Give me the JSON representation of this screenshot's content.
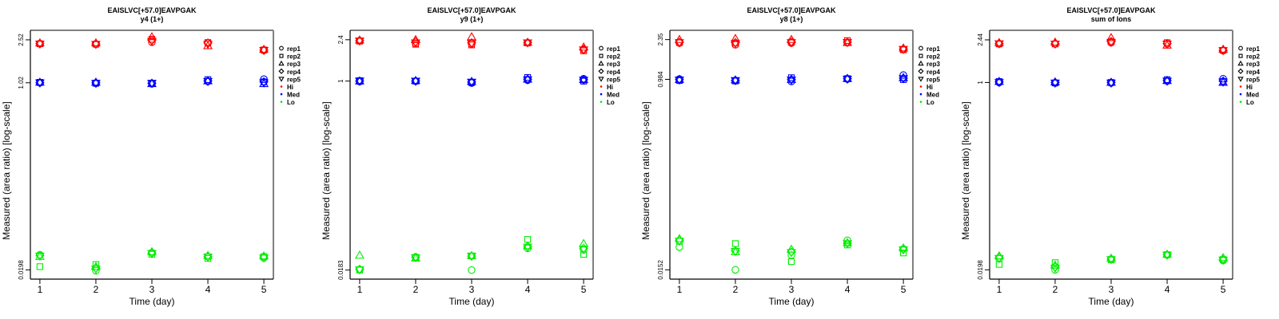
{
  "chart_data": [
    {
      "type": "scatter",
      "title": "EAISLVC[+57.0]EAVPGAK",
      "subtitle": "y4 (1+)",
      "xlabel": "Time (day)",
      "ylabel": "Measured (area ratio) [log-scale]",
      "yscale": "log",
      "x": [
        1,
        2,
        3,
        4,
        5
      ],
      "xticks": [
        "1",
        "2",
        "3",
        "4",
        "5"
      ],
      "yticks": [
        0.0198,
        1.02,
        2.52
      ],
      "ytick_labels": [
        "0.0198",
        "1.02",
        "2.52"
      ],
      "ylim": [
        0.0163,
        3.08
      ],
      "xlim": [
        0.83,
        5.17
      ],
      "legend": [
        "rep1",
        "rep2",
        "rep3",
        "rep4",
        "rep5",
        "Hi",
        "Med",
        "Lo"
      ],
      "legend_position": "right",
      "series": [
        {
          "name": "Hi",
          "rep1": [
            2.32,
            2.3,
            2.4,
            2.36,
            2.02
          ],
          "rep2": [
            2.32,
            2.3,
            2.55,
            2.38,
            2.04
          ],
          "rep3": [
            2.36,
            2.36,
            2.68,
            2.22,
            2.06
          ],
          "rep4": [
            2.33,
            2.31,
            2.5,
            2.36,
            2.03
          ],
          "rep5": [
            2.31,
            2.29,
            2.45,
            2.3,
            2.02
          ]
        },
        {
          "name": "Med",
          "rep1": [
            1.02,
            1.01,
            1.0,
            1.05,
            1.1
          ],
          "rep2": [
            1.03,
            1.01,
            1.01,
            1.09,
            1.04
          ],
          "rep3": [
            1.03,
            1.03,
            1.0,
            1.06,
            1.0
          ],
          "rep4": [
            1.02,
            1.02,
            1.01,
            1.06,
            1.04
          ],
          "rep5": [
            1.02,
            1.01,
            1.01,
            1.05,
            1.02
          ]
        },
        {
          "name": "Lo",
          "rep1": [
            0.0272,
            0.0195,
            0.0285,
            0.0262,
            0.0255
          ],
          "rep2": [
            0.0212,
            0.0222,
            0.0275,
            0.0252,
            0.0262
          ],
          "rep3": [
            0.0262,
            0.0212,
            0.029,
            0.0268,
            0.0265
          ],
          "rep4": [
            0.0268,
            0.0205,
            0.0282,
            0.0262,
            0.0258
          ],
          "rep5": [
            0.0265,
            0.0202,
            0.028,
            0.026,
            0.0255
          ]
        }
      ]
    },
    {
      "type": "scatter",
      "title": "EAISLVC[+57.0]EAVPGAK",
      "subtitle": "y9 (1+)",
      "xlabel": "Time (day)",
      "ylabel": "Measured (area ratio) [log-scale]",
      "yscale": "log",
      "x": [
        1,
        2,
        3,
        4,
        5
      ],
      "xticks": [
        "1",
        "2",
        "3",
        "4",
        "5"
      ],
      "yticks": [
        0.0183,
        1,
        2.4
      ],
      "ytick_labels": [
        "0.0183",
        "1",
        "2.4"
      ],
      "ylim": [
        0.0151,
        2.93
      ],
      "xlim": [
        0.83,
        5.17
      ],
      "legend": [
        "rep1",
        "rep2",
        "rep3",
        "rep4",
        "rep5",
        "Hi",
        "Med",
        "Lo"
      ],
      "legend_position": "right",
      "series": [
        {
          "name": "Hi",
          "rep1": [
            2.35,
            2.22,
            2.2,
            2.25,
            1.95
          ],
          "rep2": [
            2.33,
            2.18,
            2.15,
            2.24,
            1.9
          ],
          "rep3": [
            2.38,
            2.4,
            2.55,
            2.27,
            2.05
          ],
          "rep4": [
            2.36,
            2.3,
            2.25,
            2.26,
            1.96
          ],
          "rep5": [
            2.34,
            2.25,
            2.22,
            2.25,
            1.94
          ]
        },
        {
          "name": "Med",
          "rep1": [
            0.99,
            1.0,
            0.96,
            1.02,
            1.05
          ],
          "rep2": [
            1.01,
            1.0,
            0.97,
            1.08,
            1.0
          ],
          "rep3": [
            1.0,
            1.01,
            0.99,
            1.04,
            1.03
          ],
          "rep4": [
            1.0,
            1.0,
            0.98,
            1.04,
            1.03
          ],
          "rep5": [
            1.0,
            1.0,
            0.98,
            1.03,
            1.02
          ]
        },
        {
          "name": "Lo",
          "rep1": [
            0.0185,
            0.0242,
            0.0183,
            0.029,
            0.028
          ],
          "rep2": [
            0.0183,
            0.0238,
            0.0247,
            0.035,
            0.0255
          ],
          "rep3": [
            0.025,
            0.0236,
            0.0248,
            0.0305,
            0.032
          ],
          "rep4": [
            0.0186,
            0.024,
            0.0246,
            0.03,
            0.029
          ],
          "rep5": [
            0.0184,
            0.0238,
            0.0246,
            0.0298,
            0.0285
          ]
        }
      ]
    },
    {
      "type": "scatter",
      "title": "EAISLVC[+57.0]EAVPGAK",
      "subtitle": "y8 (1+)",
      "xlabel": "Time (day)",
      "ylabel": "Measured (area ratio) [log-scale]",
      "yscale": "log",
      "x": [
        1,
        2,
        3,
        4,
        5
      ],
      "xticks": [
        "1",
        "2",
        "3",
        "4",
        "5"
      ],
      "yticks": [
        0.0152,
        0.984,
        2.35
      ],
      "ytick_labels": [
        "0.0152",
        "0.984",
        "2.35"
      ],
      "ylim": [
        0.0124,
        2.88
      ],
      "xlim": [
        0.83,
        5.17
      ],
      "legend": [
        "rep1",
        "rep2",
        "rep3",
        "rep4",
        "rep5",
        "Hi",
        "Med",
        "Lo"
      ],
      "legend_position": "right",
      "series": [
        {
          "name": "Hi",
          "rep1": [
            2.18,
            2.1,
            2.18,
            2.2,
            1.9
          ],
          "rep2": [
            2.2,
            2.18,
            2.22,
            2.3,
            1.88
          ],
          "rep3": [
            2.35,
            2.4,
            2.35,
            2.2,
            1.95
          ],
          "rep4": [
            2.22,
            2.2,
            2.23,
            2.22,
            1.91
          ],
          "rep5": [
            2.2,
            2.16,
            2.2,
            2.21,
            1.9
          ]
        },
        {
          "name": "Med",
          "rep1": [
            0.99,
            0.96,
            0.94,
            0.99,
            1.08
          ],
          "rep2": [
            0.96,
            0.95,
            1.02,
            1.0,
            0.98
          ],
          "rep3": [
            0.98,
            0.97,
            0.98,
            1.0,
            1.02
          ],
          "rep4": [
            0.98,
            0.96,
            0.98,
            1.0,
            1.01
          ],
          "rep5": [
            0.97,
            0.96,
            0.97,
            0.99,
            1.0
          ]
        },
        {
          "name": "Lo",
          "rep1": [
            0.025,
            0.0152,
            0.021,
            0.029,
            0.024
          ],
          "rep2": [
            0.0285,
            0.027,
            0.0182,
            0.0262,
            0.022
          ],
          "rep3": [
            0.03,
            0.0225,
            0.0238,
            0.0275,
            0.0245
          ],
          "rep4": [
            0.029,
            0.023,
            0.0225,
            0.0272,
            0.0238
          ],
          "rep5": [
            0.0285,
            0.0228,
            0.0222,
            0.027,
            0.0236
          ]
        }
      ]
    },
    {
      "type": "scatter",
      "title": "EAISLVC[+57.0]EAVPGAK",
      "subtitle": "sum of Ions",
      "xlabel": "Time (day)",
      "ylabel": "Measured (area ratio) [log-scale]",
      "yscale": "log",
      "x": [
        1,
        2,
        3,
        4,
        5
      ],
      "xticks": [
        "1",
        "2",
        "3",
        "4",
        "5"
      ],
      "yticks": [
        0.0198,
        1,
        2.44
      ],
      "ytick_labels": [
        "0.0198",
        "1",
        "2.44"
      ],
      "ylim": [
        0.0163,
        2.98
      ],
      "xlim": [
        0.83,
        5.17
      ],
      "legend": [
        "rep1",
        "rep2",
        "rep3",
        "rep4",
        "rep5",
        "Hi",
        "Med",
        "Lo"
      ],
      "legend_position": "right",
      "series": [
        {
          "name": "Hi",
          "rep1": [
            2.25,
            2.25,
            2.3,
            2.25,
            1.95
          ],
          "rep2": [
            2.24,
            2.24,
            2.35,
            2.3,
            1.96
          ],
          "rep3": [
            2.3,
            2.32,
            2.55,
            2.18,
            2.0
          ],
          "rep4": [
            2.26,
            2.25,
            2.36,
            2.26,
            1.96
          ],
          "rep5": [
            2.25,
            2.24,
            2.32,
            2.24,
            1.95
          ]
        },
        {
          "name": "Med",
          "rep1": [
            1.0,
            0.99,
            0.99,
            1.03,
            1.08
          ],
          "rep2": [
            1.02,
            0.99,
            1.0,
            1.06,
            1.02
          ],
          "rep3": [
            1.02,
            1.01,
            1.0,
            1.04,
            1.0
          ],
          "rep4": [
            1.01,
            1.0,
            1.0,
            1.04,
            1.03
          ],
          "rep5": [
            1.0,
            0.99,
            0.99,
            1.03,
            1.01
          ]
        },
        {
          "name": "Lo",
          "rep1": [
            0.025,
            0.0198,
            0.0248,
            0.027,
            0.024
          ],
          "rep2": [
            0.0222,
            0.023,
            0.0244,
            0.0272,
            0.0246
          ],
          "rep3": [
            0.0265,
            0.0218,
            0.0252,
            0.0274,
            0.0255
          ],
          "rep4": [
            0.0256,
            0.021,
            0.0248,
            0.0272,
            0.0245
          ],
          "rep5": [
            0.0252,
            0.0206,
            0.0246,
            0.027,
            0.0243
          ]
        }
      ]
    }
  ],
  "colors": {
    "Hi": "#ff0000",
    "Med": "#0000ff",
    "Lo": "#00ee00",
    "axis": "#000000",
    "frame": "#808080"
  },
  "symbols": {
    "rep1": "circle",
    "rep2": "square",
    "rep3": "triangle-up",
    "rep4": "diamond",
    "rep5": "triangle-down"
  }
}
